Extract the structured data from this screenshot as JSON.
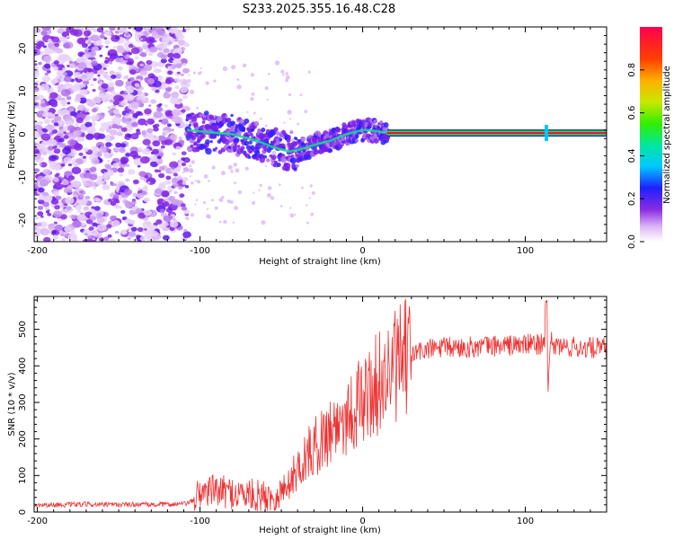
{
  "title": "S233.2025.355.16.48.C28",
  "chart_data": [
    {
      "type": "heatmap",
      "xlabel": "Height of straight line (km)",
      "ylabel": "Frequency (Hz)",
      "xlim": [
        -202,
        150
      ],
      "ylim": [
        -25,
        25
      ],
      "xticks": [
        -200,
        -100,
        0,
        100
      ],
      "yticks": [
        -20,
        -10,
        0,
        10,
        20
      ],
      "xtick_labels": [
        "-200",
        "-100",
        "0",
        "100"
      ],
      "ytick_labels": [
        "-20",
        "-10",
        "0",
        "10",
        "20"
      ],
      "noise_region_x": [
        -202,
        -108
      ],
      "tone_centerline": [
        {
          "x": -108,
          "y": 1.0
        },
        {
          "x": -95,
          "y": 0.5
        },
        {
          "x": -80,
          "y": 0.0
        },
        {
          "x": -65,
          "y": -1.5
        },
        {
          "x": -55,
          "y": -3.0
        },
        {
          "x": -45,
          "y": -4.0
        },
        {
          "x": -38,
          "y": -3.5
        },
        {
          "x": -30,
          "y": -2.5
        },
        {
          "x": -20,
          "y": -1.5
        },
        {
          "x": -10,
          "y": 0.0
        },
        {
          "x": 0,
          "y": 1.0
        },
        {
          "x": 8,
          "y": 0.8
        },
        {
          "x": 15,
          "y": 0.3
        },
        {
          "x": 150,
          "y": 0.3
        }
      ],
      "colorbar": {
        "label": "Normalized spectral amplitude",
        "range": [
          0,
          1
        ],
        "ticks": [
          0.0,
          0.2,
          0.4,
          0.6,
          0.8
        ],
        "tick_labels": [
          "0.0",
          "0.2",
          "0.4",
          "0.6",
          "0.8"
        ]
      }
    },
    {
      "type": "line",
      "xlabel": "Height of straight line (km)",
      "ylabel": "SNR (10 * v/v)",
      "xlim": [
        -202,
        150
      ],
      "ylim": [
        0,
        590
      ],
      "xticks": [
        -200,
        -100,
        0,
        100
      ],
      "yticks": [
        0,
        100,
        200,
        300,
        400,
        500
      ],
      "xtick_labels": [
        "-200",
        "-100",
        "0",
        "100"
      ],
      "ytick_labels": [
        "0",
        "100",
        "200",
        "300",
        "400",
        "500"
      ],
      "color": "#ee3333",
      "series": [
        {
          "name": "SNR",
          "x": [
            -202,
            -190,
            -180,
            -170,
            -160,
            -150,
            -140,
            -130,
            -120,
            -110,
            -104,
            -100,
            -95,
            -90,
            -85,
            -80,
            -75,
            -70,
            -65,
            -60,
            -55,
            -50,
            -45,
            -40,
            -35,
            -30,
            -25,
            -20,
            -15,
            -10,
            -5,
            0,
            5,
            10,
            15,
            20,
            25,
            30,
            35,
            40,
            50,
            60,
            70,
            80,
            90,
            100,
            105,
            110,
            112,
            114,
            116,
            118,
            125,
            135,
            150
          ],
          "y": [
            20,
            20,
            20,
            21,
            20,
            20,
            21,
            20,
            21,
            22,
            30,
            55,
            60,
            58,
            55,
            52,
            50,
            48,
            45,
            42,
            40,
            55,
            80,
            120,
            150,
            175,
            200,
            225,
            245,
            265,
            285,
            305,
            330,
            355,
            375,
            395,
            415,
            430,
            440,
            445,
            450,
            450,
            452,
            455,
            456,
            458,
            460,
            460,
            480,
            350,
            470,
            455,
            452,
            450,
            448
          ]
        }
      ]
    }
  ]
}
